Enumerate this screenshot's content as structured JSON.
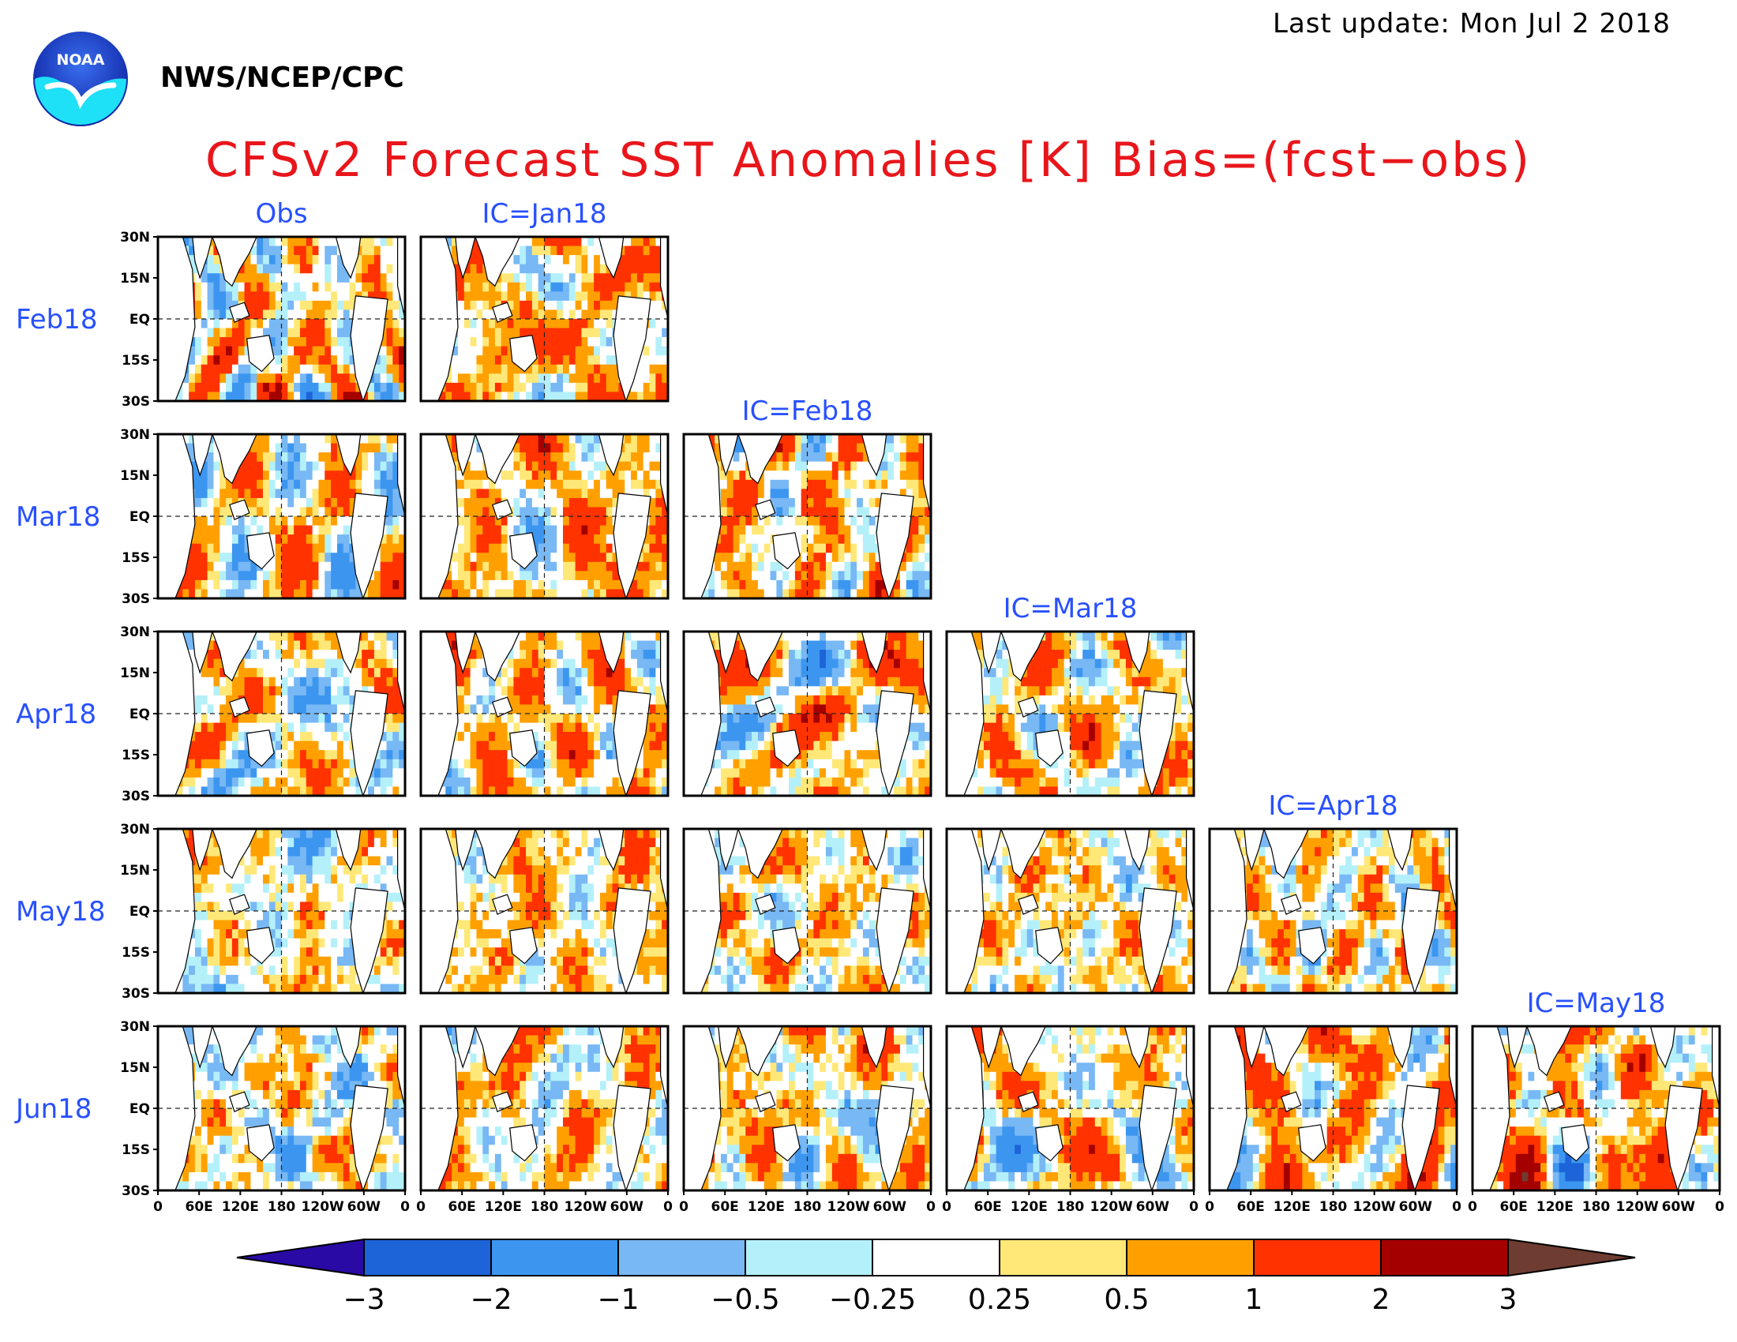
{
  "header": {
    "last_update": "Last update: Mon Jul 2 2018",
    "agency": "NWS/NCEP/CPC",
    "title": "CFSv2 Forecast SST Anomalies [K] Bias=(fcst−obs)",
    "logo_text": "NOAA"
  },
  "chart_data": {
    "type": "heatmap",
    "title": "CFSv2 Forecast SST Anomalies [K] Bias=(fcst−obs)",
    "units": "K",
    "column_labels": [
      "Obs",
      "IC=Jan18",
      "IC=Feb18",
      "IC=Mar18",
      "IC=Apr18",
      "IC=May18"
    ],
    "row_labels": [
      "Feb18",
      "Mar18",
      "Apr18",
      "May18",
      "Jun18"
    ],
    "layout": "lower-triangular",
    "panels_per_row": [
      2,
      3,
      4,
      5,
      6
    ],
    "x_axis": {
      "ticks": [
        "0",
        "60E",
        "120E",
        "180",
        "120W",
        "60W",
        "0"
      ],
      "range": [
        "0",
        "360"
      ]
    },
    "y_axis": {
      "ticks": [
        "30N",
        "15N",
        "EQ",
        "15S",
        "30S"
      ],
      "range": [
        "30S",
        "30N"
      ]
    },
    "colorbar": {
      "levels": [
        "−3",
        "−2",
        "−1",
        "−0.5",
        "−0.25",
        "0.25",
        "0.5",
        "1",
        "2",
        "3"
      ],
      "colors": [
        "#2a0aa5",
        "#1c64d8",
        "#3c96f0",
        "#78b8f4",
        "#b4f0fa",
        "#ffffff",
        "#ffe878",
        "#ffa000",
        "#ff3200",
        "#a50000",
        "#6e3c30"
      ]
    }
  }
}
